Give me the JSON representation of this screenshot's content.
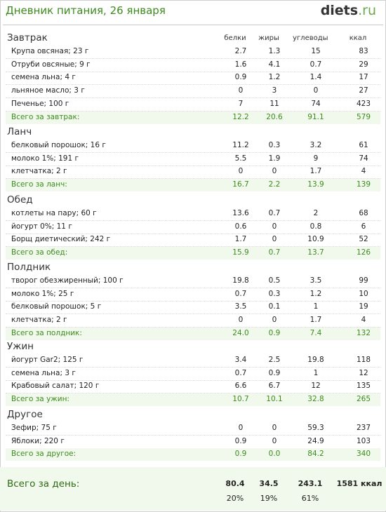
{
  "header": {
    "title": "Дневник питания, 26 января",
    "logo_main": "diets",
    "logo_tld": ".ru"
  },
  "columns": [
    "белки",
    "жиры",
    "углеводы",
    "ккал"
  ],
  "sections": [
    {
      "name": "Завтрак",
      "rows": [
        [
          "Крупа овсяная; 23 г",
          "2.7",
          "1.3",
          "15",
          "83"
        ],
        [
          "Отруби овсяные; 9 г",
          "1.6",
          "4.1",
          "0.7",
          "29"
        ],
        [
          "семена льна; 4 г",
          "0.9",
          "1.2",
          "1.4",
          "17"
        ],
        [
          "льняное масло; 3 г",
          "0",
          "3",
          "0",
          "27"
        ],
        [
          "Печенье; 100 г",
          "7",
          "11",
          "74",
          "423"
        ]
      ],
      "total": [
        "Всего за завтрак:",
        "12.2",
        "20.6",
        "91.1",
        "579"
      ]
    },
    {
      "name": "Ланч",
      "rows": [
        [
          "белковый порошок; 16 г",
          "11.2",
          "0.3",
          "3.2",
          "61"
        ],
        [
          "молоко 1%; 191 г",
          "5.5",
          "1.9",
          "9",
          "74"
        ],
        [
          "клетчатка; 2 г",
          "0",
          "0",
          "1.7",
          "4"
        ]
      ],
      "total": [
        "Всего за ланч:",
        "16.7",
        "2.2",
        "13.9",
        "139"
      ]
    },
    {
      "name": "Обед",
      "rows": [
        [
          "котлеты на пару; 60 г",
          "13.6",
          "0.7",
          "2",
          "68"
        ],
        [
          "йогурт 0%; 11 г",
          "0.6",
          "0",
          "0.8",
          "6"
        ],
        [
          "Борщ диетический; 242 г",
          "1.7",
          "0",
          "10.9",
          "52"
        ]
      ],
      "total": [
        "Всего за обед:",
        "15.9",
        "0.7",
        "13.7",
        "126"
      ]
    },
    {
      "name": "Полдник",
      "rows": [
        [
          "творог обезжиренный; 100 г",
          "19.8",
          "0.5",
          "3.5",
          "99"
        ],
        [
          "молоко 1%; 25 г",
          "0.7",
          "0.3",
          "1.2",
          "10"
        ],
        [
          "белковый порошок; 5 г",
          "3.5",
          "0.1",
          "1",
          "19"
        ],
        [
          "клетчатка; 2 г",
          "0",
          "0",
          "1.7",
          "4"
        ]
      ],
      "total": [
        "Всего за полдник:",
        "24.0",
        "0.9",
        "7.4",
        "132"
      ]
    },
    {
      "name": "Ужин",
      "rows": [
        [
          "йогурт Gar2; 125 г",
          "3.4",
          "2.5",
          "19.8",
          "118"
        ],
        [
          "семена льна; 3 г",
          "0.7",
          "0.9",
          "1",
          "12"
        ],
        [
          "Крабовый салат; 120 г",
          "6.6",
          "6.7",
          "12",
          "135"
        ]
      ],
      "total": [
        "Всего за ужин:",
        "10.7",
        "10.1",
        "32.8",
        "265"
      ]
    },
    {
      "name": "Другое",
      "rows": [
        [
          "Зефир; 75 г",
          "0",
          "0",
          "59.3",
          "237"
        ],
        [
          "Яблоки; 220 г",
          "0.9",
          "0",
          "24.9",
          "103"
        ]
      ],
      "total": [
        "Всего за другое:",
        "0.9",
        "0.0",
        "84.2",
        "340"
      ]
    }
  ],
  "day": {
    "label": "Всего за день:",
    "protein": "80.4",
    "fat": "34.5",
    "carbs": "243.1",
    "kcal": "1581 ккал",
    "protein_pct": "20%",
    "fat_pct": "19%",
    "carbs_pct": "61%"
  },
  "colors": {
    "accent": "#3d8a1f",
    "total_bg": "#f1f9ec"
  }
}
